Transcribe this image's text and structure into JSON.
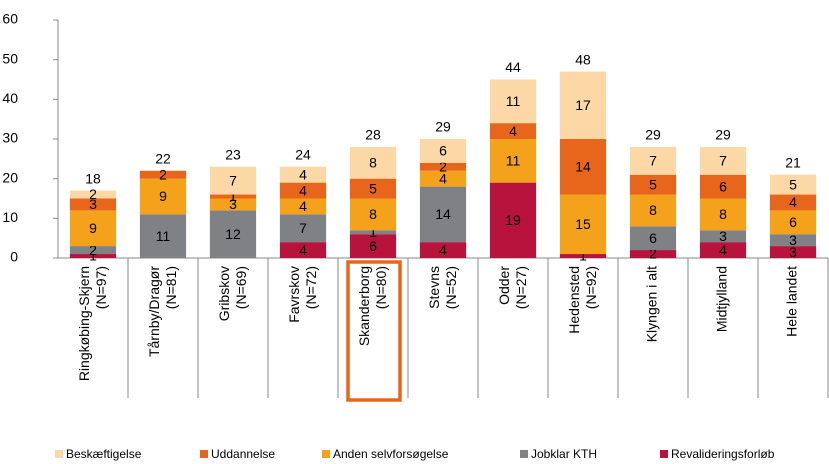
{
  "chart_data": {
    "type": "stacked_bar",
    "categories": [
      "Ringkøbing-Skjern (N=97)",
      "Tårnby/Dragør (N=81)",
      "Gribskov (N=69)",
      "Favrskov (N=72)",
      "Skanderborg (N=80)",
      "Stevns (N=52)",
      "Odder (N=27)",
      "Hedensted (N=92)",
      "Klyngen i alt",
      "Midtjylland",
      "Hele landet"
    ],
    "series": [
      {
        "name": "Beskæftigelse",
        "color": "#fbd8a5",
        "values": [
          2,
          0,
          7,
          4,
          8,
          6,
          11,
          17,
          7,
          7,
          5
        ]
      },
      {
        "name": "Uddannelse",
        "color": "#e8651c",
        "values": [
          3,
          2,
          1,
          4,
          5,
          2,
          4,
          14,
          5,
          6,
          4
        ]
      },
      {
        "name": "Anden selvforsøgelse",
        "color": "#f4a11b",
        "values": [
          9,
          9,
          3,
          4,
          8,
          4,
          11,
          15,
          8,
          8,
          6
        ]
      },
      {
        "name": "Jobklar KTH",
        "color": "#808184",
        "values": [
          2,
          11,
          12,
          7,
          1,
          14,
          0,
          0,
          6,
          3,
          3
        ]
      },
      {
        "name": "Revalideringsforløb",
        "color": "#b7133d",
        "values": [
          1,
          0,
          0,
          4,
          6,
          4,
          19,
          1,
          2,
          4,
          3
        ]
      }
    ],
    "totals": [
      18,
      22,
      23,
      24,
      28,
      29,
      44,
      48,
      29,
      29,
      21
    ],
    "ylim": [
      0,
      60
    ],
    "yticks": [
      0,
      10,
      20,
      30,
      40,
      50,
      60
    ],
    "highlight": 4,
    "highlight_color": "#e8651c",
    "legend": "bottom"
  }
}
